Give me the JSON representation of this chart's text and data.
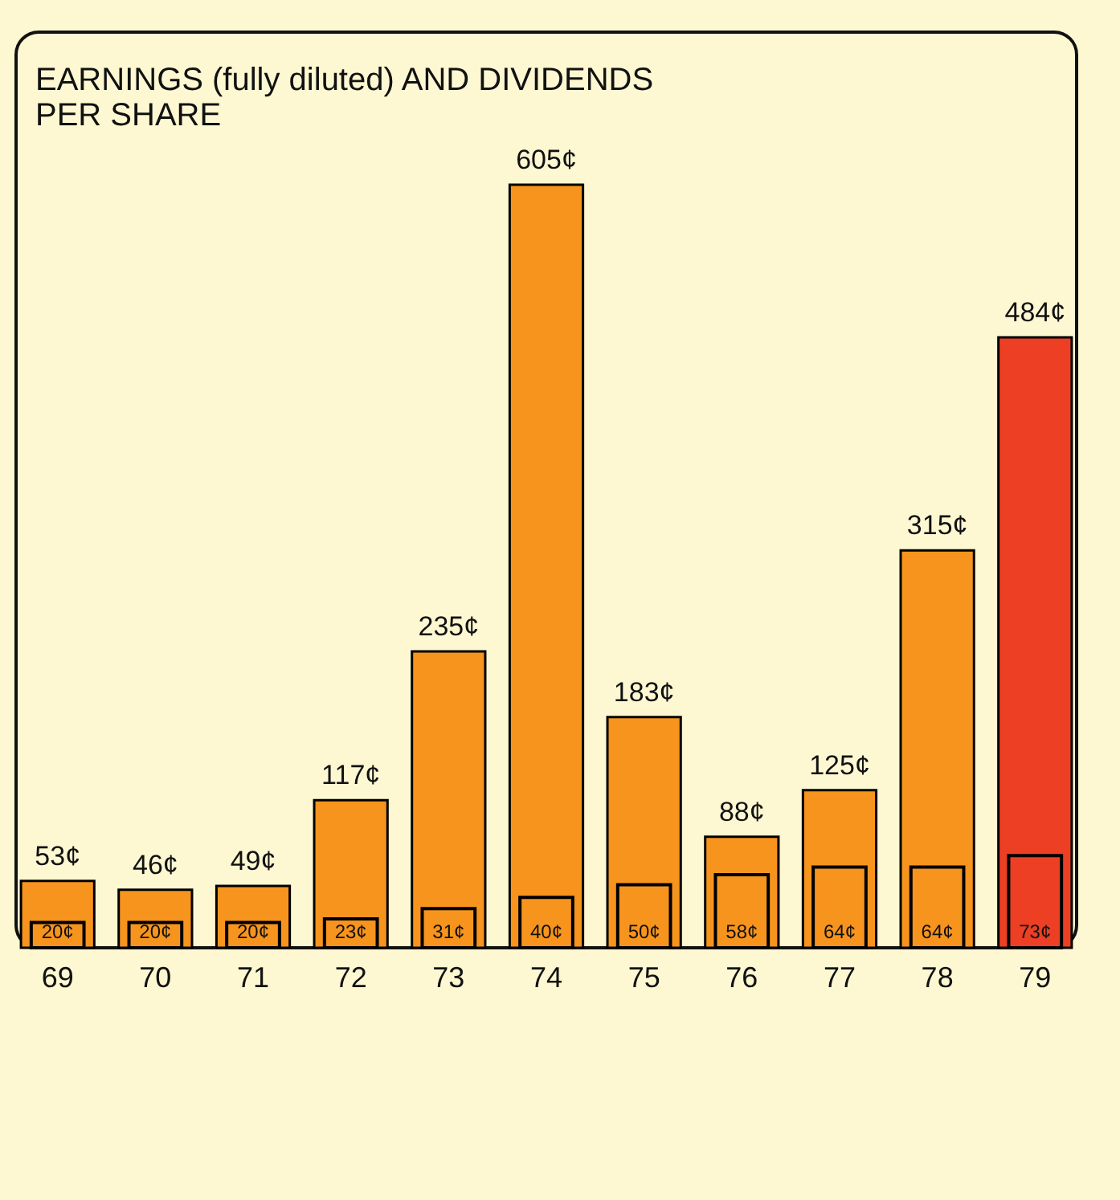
{
  "chart_data": {
    "type": "bar",
    "title": [
      "EARNINGS (fully diluted) AND DIVIDENDS",
      "PER SHARE"
    ],
    "categories": [
      "69",
      "70",
      "71",
      "72",
      "73",
      "74",
      "75",
      "76",
      "77",
      "78",
      "79"
    ],
    "series": [
      {
        "colors": [
          "#f7941d",
          "#f7941d",
          "#f7941d",
          "#f7941d",
          "#f7941d",
          "#f7941d",
          "#f7941d",
          "#f7941d",
          "#f7941d",
          "#f7941d",
          "#ec3f24"
        ],
        "values": [
          53,
          46,
          49,
          117,
          235,
          605,
          183,
          88,
          125,
          315,
          484
        ],
        "value_labels": [
          "53¢",
          "46¢",
          "49¢",
          "117¢",
          "235¢",
          "605¢",
          "183¢",
          "88¢",
          "125¢",
          "315¢",
          "484¢"
        ]
      },
      {
        "colors": [
          "#f7941d",
          "#f7941d",
          "#f7941d",
          "#f7941d",
          "#f7941d",
          "#f7941d",
          "#f7941d",
          "#f7941d",
          "#f7941d",
          "#f7941d",
          "#ec3f24"
        ],
        "values": [
          20,
          20,
          20,
          23,
          31,
          40,
          50,
          58,
          64,
          64,
          73
        ],
        "value_labels": [
          "20¢",
          "20¢",
          "20¢",
          "23¢",
          "31¢",
          "40¢",
          "50¢",
          "58¢",
          "64¢",
          "64¢",
          "73¢"
        ]
      }
    ],
    "tick_labels": "x"
  }
}
